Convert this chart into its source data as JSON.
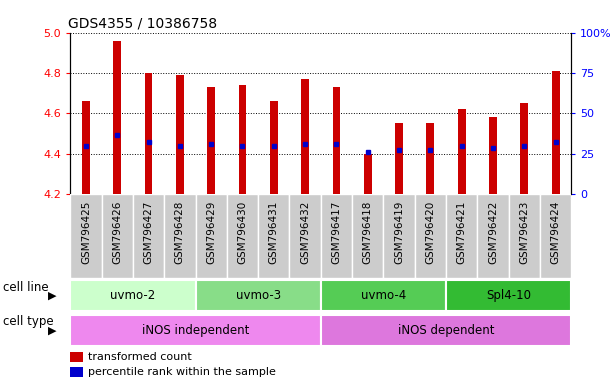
{
  "title": "GDS4355 / 10386758",
  "samples": [
    "GSM796425",
    "GSM796426",
    "GSM796427",
    "GSM796428",
    "GSM796429",
    "GSM796430",
    "GSM796431",
    "GSM796432",
    "GSM796417",
    "GSM796418",
    "GSM796419",
    "GSM796420",
    "GSM796421",
    "GSM796422",
    "GSM796423",
    "GSM796424"
  ],
  "bar_values": [
    4.66,
    4.96,
    4.8,
    4.79,
    4.73,
    4.74,
    4.66,
    4.77,
    4.73,
    4.4,
    4.55,
    4.55,
    4.62,
    4.58,
    4.65,
    4.81
  ],
  "blue_dot_values": [
    4.44,
    4.49,
    4.46,
    4.44,
    4.45,
    4.44,
    4.44,
    4.45,
    4.45,
    4.41,
    4.42,
    4.42,
    4.44,
    4.43,
    4.44,
    4.46
  ],
  "ylim": [
    4.2,
    5.0
  ],
  "yticks_left": [
    4.2,
    4.4,
    4.6,
    4.8,
    5.0
  ],
  "yticks_right": [
    0,
    25,
    50,
    75,
    100
  ],
  "bar_color": "#cc0000",
  "dot_color": "#0000cc",
  "bar_width": 0.25,
  "cell_lines": [
    {
      "label": "uvmo-2",
      "start": 0,
      "end": 4,
      "color": "#ccffcc"
    },
    {
      "label": "uvmo-3",
      "start": 4,
      "end": 8,
      "color": "#88dd88"
    },
    {
      "label": "uvmo-4",
      "start": 8,
      "end": 12,
      "color": "#55cc55"
    },
    {
      "label": "Spl4-10",
      "start": 12,
      "end": 16,
      "color": "#33bb33"
    }
  ],
  "cell_types": [
    {
      "label": "iNOS independent",
      "start": 0,
      "end": 8,
      "color": "#ee88ee"
    },
    {
      "label": "iNOS dependent",
      "start": 8,
      "end": 16,
      "color": "#dd77dd"
    }
  ],
  "cell_line_label": "cell line",
  "cell_type_label": "cell type",
  "legend_items": [
    {
      "label": "transformed count",
      "color": "#cc0000"
    },
    {
      "label": "percentile rank within the sample",
      "color": "#0000cc"
    }
  ],
  "right_ylabel": "%",
  "xlabel_bg_color": "#cccccc",
  "xlabel_fontsize": 7.5,
  "row_label_fontsize": 8.5,
  "row_content_fontsize": 8.5
}
